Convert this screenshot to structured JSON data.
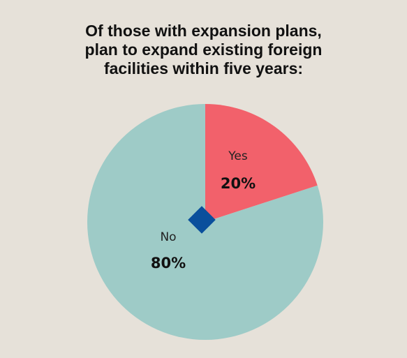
{
  "chart_data": {
    "type": "pie",
    "title_lines": [
      "Of those with expansion plans,",
      "plan to expand existing foreign",
      "facilities within five years:"
    ],
    "slices": [
      {
        "label": "Yes",
        "value": 20,
        "value_label": "20%",
        "color": "#f2616b"
      },
      {
        "label": "No",
        "value": 80,
        "value_label": "80%",
        "color": "#9ecbc7"
      }
    ],
    "center_marker_color": "#0a4f9c",
    "legend": "none"
  }
}
